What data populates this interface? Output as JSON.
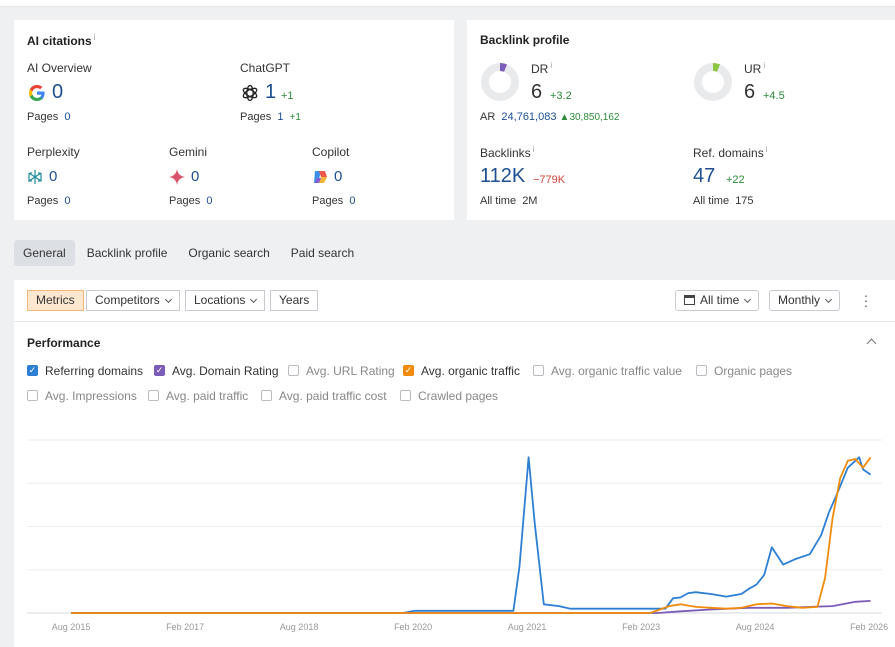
{
  "ai_citations": {
    "title": "AI citations",
    "info": "i",
    "pages_label": "Pages",
    "items": [
      {
        "name": "AI Overview",
        "value": "0",
        "pages": "0",
        "delta": "",
        "pages_delta": ""
      },
      {
        "name": "ChatGPT",
        "value": "1",
        "pages": "1",
        "delta": "+1",
        "pages_delta": "+1"
      },
      {
        "name": "Perplexity",
        "value": "0",
        "pages": "0"
      },
      {
        "name": "Gemini",
        "value": "0",
        "pages": "0"
      },
      {
        "name": "Copilot",
        "value": "0",
        "pages": "0"
      }
    ]
  },
  "backlink_profile": {
    "title": "Backlink profile",
    "dr": {
      "label": "DR",
      "value": "6",
      "delta": "+3.2",
      "gauge_fraction": 0.06,
      "gauge_color": "#7b5cb8"
    },
    "ur": {
      "label": "UR",
      "value": "6",
      "delta": "+4.5",
      "gauge_fraction": 0.06,
      "gauge_color": "#8cc540"
    },
    "ar": {
      "label": "AR",
      "value": "24,761,083",
      "delta": "30,850,162"
    },
    "backlinks": {
      "label": "Backlinks",
      "value": "112K",
      "delta": "−779K",
      "all_time_label": "All time",
      "all_time": "2M"
    },
    "ref_domains": {
      "label": "Ref. domains",
      "value": "47",
      "delta": "+22",
      "all_time_label": "All time",
      "all_time": "175"
    },
    "info": "i"
  },
  "tabs": [
    "General",
    "Backlink profile",
    "Organic search",
    "Paid search"
  ],
  "toolbar": {
    "metrics": "Metrics",
    "competitors": "Competitors",
    "locations": "Locations",
    "years": "Years",
    "all_time": "All time",
    "monthly": "Monthly"
  },
  "performance": {
    "title": "Performance",
    "checkboxes": [
      {
        "label": "Referring domains",
        "checked": true,
        "color": "#2d7fd3"
      },
      {
        "label": "Avg. Domain Rating",
        "checked": true,
        "color": "#7b5cb8"
      },
      {
        "label": "Avg. URL Rating",
        "checked": false
      },
      {
        "label": "Avg. organic traffic",
        "checked": true,
        "color": "#f28b0c"
      },
      {
        "label": "Avg. organic traffic value",
        "checked": false
      },
      {
        "label": "Organic pages",
        "checked": false
      },
      {
        "label": "Avg. Impressions",
        "checked": false
      },
      {
        "label": "Avg. paid traffic",
        "checked": false
      },
      {
        "label": "Avg. paid traffic cost",
        "checked": false
      },
      {
        "label": "Crawled pages",
        "checked": false
      }
    ]
  },
  "chart_data": {
    "type": "line",
    "x_ticks": [
      "Aug 2015",
      "Feb 2017",
      "Aug 2018",
      "Feb 2020",
      "Aug 2021",
      "Feb 2023",
      "Aug 2024",
      "Feb 2026"
    ],
    "xlim": [
      2015.0,
      2026.25
    ],
    "ylim": [
      0,
      1
    ],
    "grid": true,
    "series": [
      {
        "name": "Referring domains",
        "color": "#2d7fd3",
        "x": [
          2015.58,
          2019.95,
          2020.1,
          2021.4,
          2021.48,
          2021.6,
          2021.68,
          2021.8,
          2022.0,
          2022.15,
          2022.4,
          2023.4,
          2023.5,
          2023.6,
          2023.7,
          2023.8,
          2024.0,
          2024.2,
          2024.4,
          2024.5,
          2024.6,
          2024.7,
          2024.8,
          2024.95,
          2025.1,
          2025.3,
          2025.45,
          2025.55,
          2025.65,
          2025.8,
          2025.95,
          2026.0,
          2026.1
        ],
        "y": [
          0.0,
          0.0,
          0.013,
          0.013,
          0.27,
          0.9,
          0.52,
          0.05,
          0.04,
          0.025,
          0.025,
          0.025,
          0.085,
          0.09,
          0.115,
          0.12,
          0.11,
          0.095,
          0.11,
          0.14,
          0.165,
          0.22,
          0.38,
          0.28,
          0.31,
          0.34,
          0.45,
          0.58,
          0.68,
          0.84,
          0.9,
          0.83,
          0.8
        ]
      },
      {
        "name": "Avg. Domain Rating",
        "color": "#7b5cb8",
        "x": [
          2015.58,
          2023.3,
          2023.6,
          2024.0,
          2024.5,
          2025.0,
          2025.3,
          2025.6,
          2025.9,
          2026.1
        ],
        "y": [
          0.0,
          0.0,
          0.01,
          0.02,
          0.03,
          0.03,
          0.035,
          0.04,
          0.065,
          0.07
        ]
      },
      {
        "name": "Avg. organic traffic",
        "color": "#f28b0c",
        "x": [
          2015.58,
          2023.2,
          2023.45,
          2023.6,
          2023.8,
          2024.0,
          2024.2,
          2024.4,
          2024.6,
          2024.8,
          2025.0,
          2025.2,
          2025.4,
          2025.5,
          2025.6,
          2025.7,
          2025.8,
          2025.9,
          2026.0,
          2026.1
        ],
        "y": [
          0.0,
          0.0,
          0.04,
          0.05,
          0.035,
          0.03,
          0.025,
          0.03,
          0.05,
          0.055,
          0.04,
          0.03,
          0.035,
          0.2,
          0.55,
          0.78,
          0.88,
          0.89,
          0.84,
          0.9
        ]
      }
    ]
  }
}
